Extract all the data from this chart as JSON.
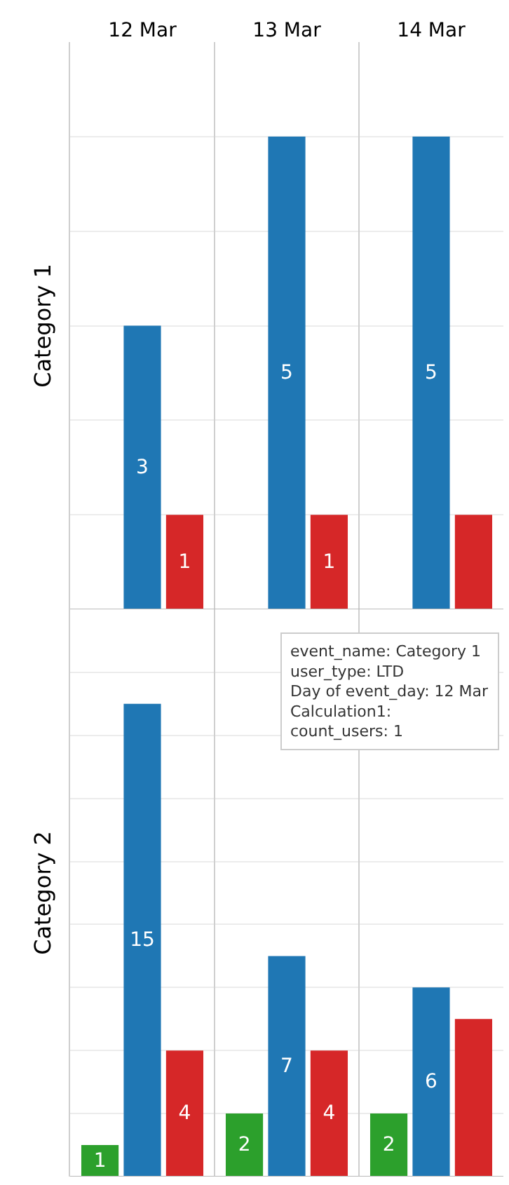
{
  "chart_data": [
    {
      "type": "bar",
      "categories": [
        "12 Mar",
        "13 Mar",
        "14 Mar"
      ],
      "ylabel": "Category 1",
      "ylim": [
        0,
        6
      ],
      "yticks": [
        {
          "value": 0,
          "label": null
        },
        {
          "value": 1,
          "label": null
        },
        {
          "value": 2,
          "label": null
        },
        {
          "value": 3,
          "label": null
        },
        {
          "value": 4,
          "label": null
        },
        {
          "value": 5,
          "label": null
        }
      ],
      "grid": "y",
      "tick_labels": "x",
      "series": [
        {
          "color": "#2ca02c",
          "values": [
            null,
            null,
            null
          ],
          "value_labels": [
            null,
            null,
            null
          ]
        },
        {
          "color": "#1f77b4",
          "values": [
            3,
            5,
            5
          ],
          "value_labels": [
            "3",
            "5",
            "5"
          ]
        },
        {
          "color": "#d62728",
          "values": [
            1,
            1,
            1
          ],
          "value_labels": [
            "1",
            "1",
            null
          ]
        }
      ],
      "annotations": [
        "event_name: Category 1",
        "user_type: LTD",
        "Day of event_day: 12 Mar",
        "Calculation1:",
        "count_users: 1"
      ]
    },
    {
      "type": "bar",
      "categories": [
        "12 Mar",
        "13 Mar",
        "14 Mar"
      ],
      "ylabel": "Category 2",
      "ylim": [
        0,
        18
      ],
      "yticks": [
        {
          "value": 0,
          "label": null
        },
        {
          "value": 2,
          "label": null
        },
        {
          "value": 4,
          "label": null
        },
        {
          "value": 6,
          "label": null
        },
        {
          "value": 8,
          "label": null
        },
        {
          "value": 10,
          "label": null
        },
        {
          "value": 12,
          "label": null
        },
        {
          "value": 14,
          "label": null
        },
        {
          "value": 16,
          "label": null
        },
        {
          "value": 18,
          "label": null
        }
      ],
      "grid": "y",
      "tick_labels": false,
      "series": [
        {
          "color": "#2ca02c",
          "values": [
            1,
            2,
            2
          ],
          "value_labels": [
            "1",
            "2",
            "2"
          ]
        },
        {
          "color": "#1f77b4",
          "values": [
            15,
            7,
            6
          ],
          "value_labels": [
            "15",
            "7",
            "6"
          ]
        },
        {
          "color": "#d62728",
          "values": [
            4,
            4,
            5
          ],
          "value_labels": [
            "4",
            "4",
            null
          ]
        }
      ]
    }
  ]
}
